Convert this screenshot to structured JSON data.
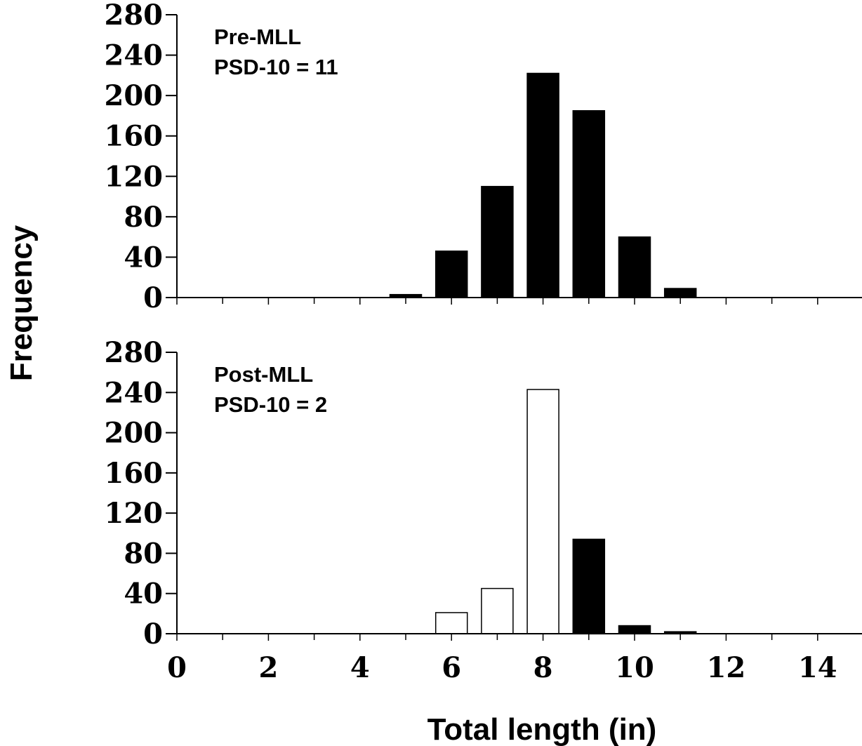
{
  "chart_data": [
    {
      "type": "bar",
      "panel": "top",
      "annotation": [
        "Pre-MLL",
        "PSD-10 = 11"
      ],
      "x": [
        5,
        6,
        7,
        8,
        9,
        10,
        11
      ],
      "values": [
        3,
        46,
        110,
        222,
        185,
        60,
        9
      ],
      "fills": [
        "black",
        "black",
        "black",
        "black",
        "black",
        "black",
        "black"
      ],
      "ylim": [
        0,
        280
      ],
      "yticks": [
        "0",
        "40",
        "80",
        "120",
        "160",
        "200",
        "240",
        "280"
      ],
      "xlim": [
        0,
        15
      ],
      "xticks_major": [
        0,
        2,
        4,
        6,
        8,
        10,
        12,
        14
      ],
      "grid": false
    },
    {
      "type": "bar",
      "panel": "bottom",
      "annotation": [
        "Post-MLL",
        "PSD-10 = 2"
      ],
      "x": [
        6,
        7,
        8,
        9,
        10,
        11
      ],
      "values": [
        21,
        45,
        243,
        94,
        8,
        2
      ],
      "fills": [
        "white",
        "white",
        "white",
        "black",
        "black",
        "black"
      ],
      "ylim": [
        0,
        280
      ],
      "yticks": [
        "0",
        "40",
        "80",
        "120",
        "160",
        "200",
        "240",
        "280"
      ],
      "xlim": [
        0,
        15
      ],
      "xticks_major": [
        0,
        2,
        4,
        6,
        8,
        10,
        12,
        14
      ],
      "xtick_labels": [
        "0",
        "2",
        "4",
        "6",
        "8",
        "10",
        "12",
        "14"
      ],
      "grid": false
    }
  ],
  "axes": {
    "ylabel": "Frequency",
    "xlabel": "Total length (in)"
  },
  "colors": {
    "bar_filled": "#000000",
    "bar_open": "#ffffff",
    "outline": "#000000"
  }
}
